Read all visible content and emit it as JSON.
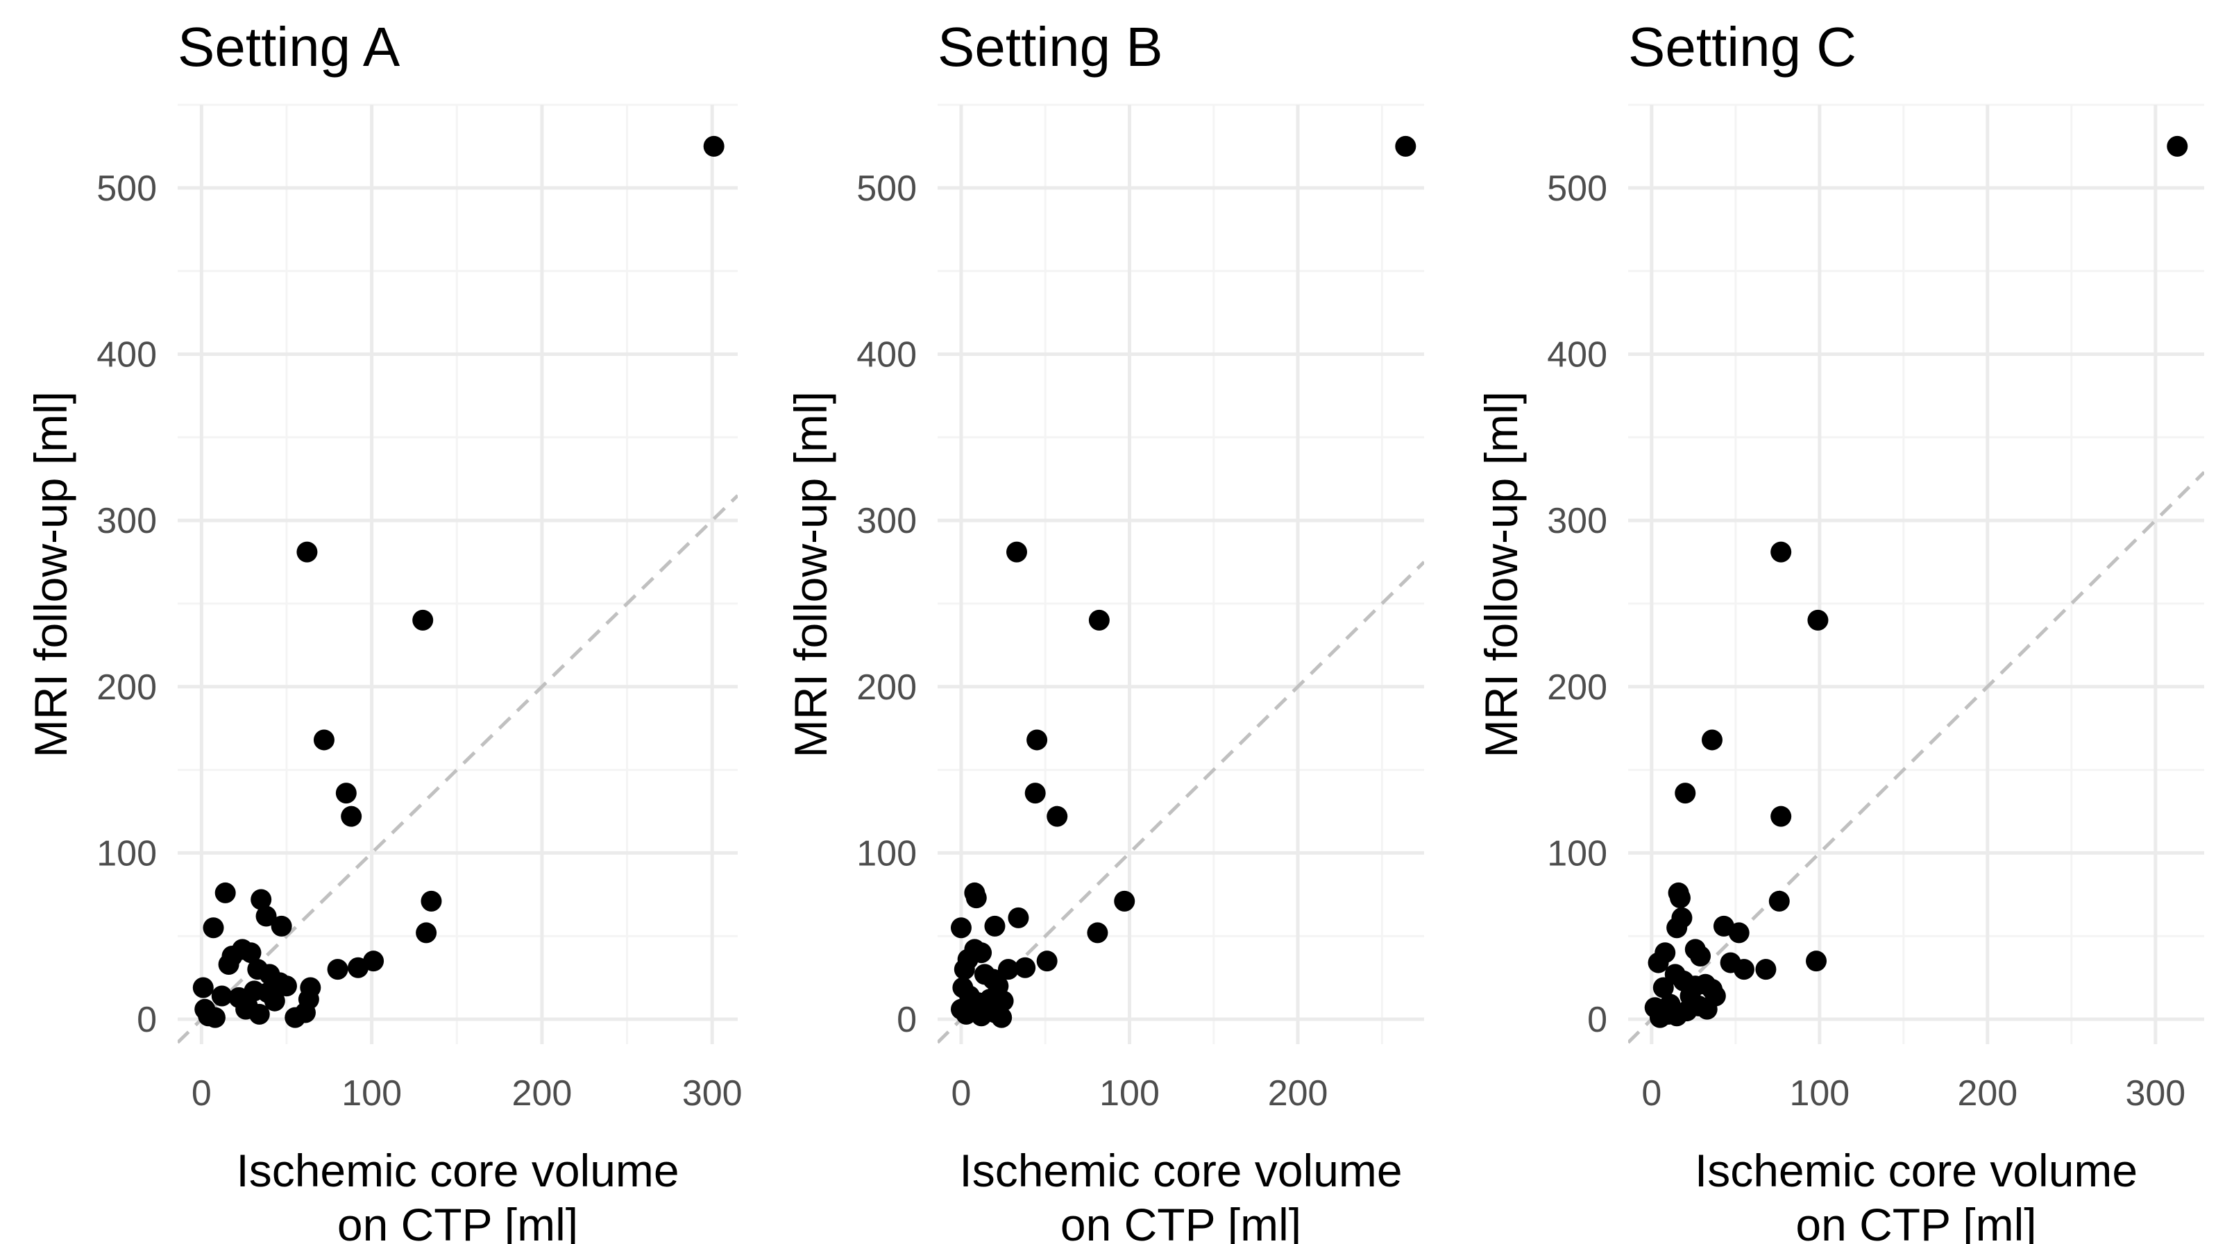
{
  "chart_data": [
    {
      "type": "scatter",
      "title": "Setting A",
      "xlabel": "Ischemic core volume\non CTP [ml]",
      "ylabel": "MRI follow-up [ml]",
      "xlim": [
        -14,
        315
      ],
      "ylim": [
        -15,
        550
      ],
      "xticks": [
        0,
        100,
        200,
        300
      ],
      "yticks": [
        0,
        100,
        200,
        300,
        400,
        500
      ],
      "grid": true,
      "reference_line": "y = x",
      "points": [
        [
          301,
          525
        ],
        [
          62,
          281
        ],
        [
          130,
          240
        ],
        [
          72,
          168
        ],
        [
          85,
          136
        ],
        [
          88,
          122
        ],
        [
          135,
          71
        ],
        [
          132,
          52
        ],
        [
          101,
          35
        ],
        [
          92,
          31
        ],
        [
          80,
          30
        ],
        [
          14,
          76
        ],
        [
          35,
          72
        ],
        [
          7,
          55
        ],
        [
          38,
          62
        ],
        [
          47,
          56
        ],
        [
          18,
          38
        ],
        [
          24,
          42
        ],
        [
          29,
          40
        ],
        [
          16,
          33
        ],
        [
          33,
          30
        ],
        [
          40,
          27
        ],
        [
          46,
          22
        ],
        [
          50,
          20
        ],
        [
          31,
          17
        ],
        [
          39,
          16
        ],
        [
          22,
          13
        ],
        [
          12,
          14
        ],
        [
          1,
          19
        ],
        [
          2,
          6
        ],
        [
          4,
          2
        ],
        [
          8,
          1
        ],
        [
          27,
          8
        ],
        [
          34,
          3
        ],
        [
          43,
          11
        ],
        [
          55,
          1
        ],
        [
          61,
          4
        ],
        [
          63,
          12
        ],
        [
          64,
          19
        ],
        [
          26,
          6
        ]
      ]
    },
    {
      "type": "scatter",
      "title": "Setting B",
      "xlabel": "Ischemic core volume\non CTP [ml]",
      "ylabel": "MRI follow-up [ml]",
      "xlim": [
        -14,
        275
      ],
      "ylim": [
        -15,
        550
      ],
      "xticks": [
        0,
        100,
        200
      ],
      "yticks": [
        0,
        100,
        200,
        300,
        400,
        500
      ],
      "grid": true,
      "reference_line": "y = x",
      "points": [
        [
          264,
          525
        ],
        [
          33,
          281
        ],
        [
          82,
          240
        ],
        [
          45,
          168
        ],
        [
          44,
          136
        ],
        [
          57,
          122
        ],
        [
          97,
          71
        ],
        [
          81,
          52
        ],
        [
          51,
          35
        ],
        [
          38,
          31
        ],
        [
          8,
          76
        ],
        [
          9,
          73
        ],
        [
          34,
          61
        ],
        [
          20,
          56
        ],
        [
          0,
          55
        ],
        [
          8,
          42
        ],
        [
          12,
          40
        ],
        [
          4,
          36
        ],
        [
          2,
          30
        ],
        [
          14,
          27
        ],
        [
          19,
          24
        ],
        [
          28,
          30
        ],
        [
          22,
          20
        ],
        [
          1,
          19
        ],
        [
          5,
          14
        ],
        [
          10,
          10
        ],
        [
          17,
          12
        ],
        [
          25,
          11
        ],
        [
          0,
          6
        ],
        [
          3,
          3
        ],
        [
          12,
          2
        ],
        [
          20,
          4
        ],
        [
          24,
          1
        ],
        [
          7,
          8
        ]
      ]
    },
    {
      "type": "scatter",
      "title": "Setting C",
      "xlabel": "Ischemic core volume\non CTP [ml]",
      "ylabel": "MRI follow-up [ml]",
      "xlim": [
        -14,
        329
      ],
      "ylim": [
        -15,
        550
      ],
      "xticks": [
        0,
        100,
        200,
        300
      ],
      "yticks": [
        0,
        100,
        200,
        300,
        400,
        500
      ],
      "grid": true,
      "reference_line": "y = x",
      "points": [
        [
          313,
          525
        ],
        [
          77,
          281
        ],
        [
          99,
          240
        ],
        [
          36,
          168
        ],
        [
          20,
          136
        ],
        [
          77,
          122
        ],
        [
          76,
          71
        ],
        [
          98,
          35
        ],
        [
          68,
          30
        ],
        [
          55,
          30
        ],
        [
          47,
          34
        ],
        [
          16,
          76
        ],
        [
          17,
          73
        ],
        [
          18,
          61
        ],
        [
          15,
          55
        ],
        [
          43,
          56
        ],
        [
          52,
          52
        ],
        [
          8,
          40
        ],
        [
          26,
          42
        ],
        [
          29,
          38
        ],
        [
          4,
          34
        ],
        [
          14,
          27
        ],
        [
          19,
          23
        ],
        [
          32,
          21
        ],
        [
          36,
          18
        ],
        [
          38,
          14
        ],
        [
          7,
          19
        ],
        [
          23,
          14
        ],
        [
          11,
          9
        ],
        [
          2,
          7
        ],
        [
          5,
          1
        ],
        [
          10,
          3
        ],
        [
          15,
          2
        ],
        [
          21,
          5
        ],
        [
          28,
          8
        ],
        [
          33,
          6
        ],
        [
          26,
          20
        ]
      ]
    }
  ]
}
